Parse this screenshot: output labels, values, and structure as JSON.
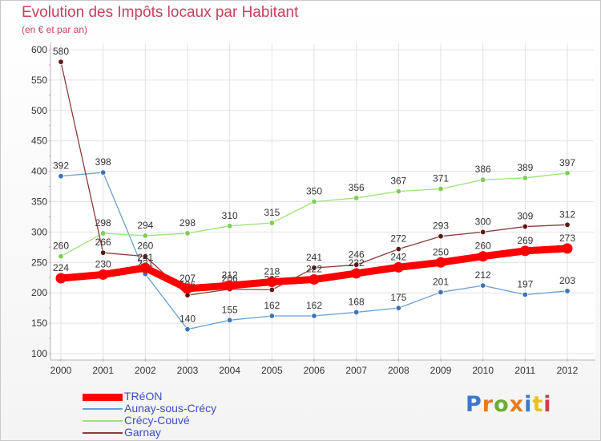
{
  "title": "Evolution des Impôts locaux par Habitant",
  "subtitle": "(en € et par an)",
  "brand": {
    "text": "Proxiti",
    "colors": [
      "#3b78c9",
      "#e87a1c",
      "#6cae2f",
      "#e87a1c",
      "#3b78c9",
      "#e8c21c",
      "#d9384d"
    ]
  },
  "chart_data": {
    "type": "line",
    "x": [
      "2000",
      "2001",
      "2002",
      "2003",
      "2004",
      "2005",
      "2006",
      "2007",
      "2008",
      "2009",
      "2010",
      "2011",
      "2012"
    ],
    "ylim": [
      100,
      600
    ],
    "yticks": [
      100,
      150,
      200,
      250,
      300,
      350,
      400,
      450,
      500,
      550,
      600
    ],
    "grid": true,
    "legend_position": "bottom-left",
    "series": [
      {
        "name": "Aunay-sous-Crécy",
        "color": "#6a9fd4",
        "marker": "#3c74b8",
        "width": 1.3,
        "values": [
          392,
          398,
          231,
          140,
          155,
          162,
          162,
          168,
          175,
          201,
          212,
          197,
          203
        ],
        "labels": [
          "392",
          "398",
          "231",
          "140",
          "155",
          "162",
          "162",
          "168",
          "175",
          "201",
          "212",
          "197",
          "203"
        ]
      },
      {
        "name": "Crécy-Couvé",
        "color": "#9de27a",
        "marker": "#7ccf52",
        "width": 1.3,
        "values": [
          260,
          298,
          294,
          298,
          310,
          315,
          350,
          356,
          367,
          371,
          386,
          389,
          397
        ],
        "labels": [
          "260",
          "298",
          "294",
          "298",
          "310",
          "315",
          "350",
          "356",
          "367",
          "371",
          "386",
          "389",
          "397"
        ]
      },
      {
        "name": "Garnay",
        "color": "#8a3d3d",
        "marker": "#5e1717",
        "width": 1.3,
        "values": [
          580,
          266,
          260,
          196,
          206,
          205,
          241,
          246,
          272,
          293,
          300,
          309,
          312
        ],
        "labels": [
          "580",
          "266",
          "260",
          "196",
          "206",
          "205",
          "241",
          "246",
          "272",
          "293",
          "300",
          "309",
          "312"
        ]
      },
      {
        "name": "TRéON",
        "color": "#ff0000",
        "marker": "#ff0000",
        "width": 9,
        "values": [
          224,
          230,
          241,
          207,
          212,
          218,
          222,
          232,
          242,
          250,
          260,
          269,
          273
        ],
        "labels": [
          "224",
          "230",
          "241",
          "207",
          "212",
          "218",
          "222",
          "232",
          "242",
          "250",
          "260",
          "269",
          "273"
        ]
      }
    ],
    "legend": [
      "TRéON",
      "Aunay-sous-Crécy",
      "Crécy-Couvé",
      "Garnay"
    ]
  }
}
